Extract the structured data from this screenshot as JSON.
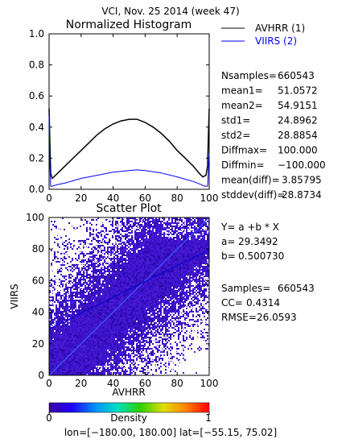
{
  "title": "VCI,  Nov. 25 2014 (week 47)",
  "chart_data": [
    {
      "type": "line",
      "title": "Normalized Histogram",
      "xlim": [
        0,
        100
      ],
      "ylim": [
        0,
        1.0
      ],
      "xticks": [
        "0",
        "20",
        "40",
        "60",
        "80",
        "100"
      ],
      "yticks": [
        "0.0",
        "0.2",
        "0.4",
        "0.6",
        "0.8",
        "1.0"
      ],
      "legend_position": "top-right",
      "series": [
        {
          "name": "AVHRR (1)",
          "color": "#000000",
          "x": [
            0,
            0.5,
            1,
            2,
            4,
            6,
            10,
            15,
            20,
            25,
            30,
            35,
            40,
            45,
            50,
            55,
            60,
            65,
            70,
            75,
            80,
            85,
            90,
            94,
            96,
            98,
            99,
            99.5,
            100
          ],
          "y": [
            0.52,
            0.3,
            0.1,
            0.07,
            0.09,
            0.11,
            0.15,
            0.2,
            0.25,
            0.3,
            0.35,
            0.39,
            0.42,
            0.44,
            0.45,
            0.45,
            0.43,
            0.4,
            0.36,
            0.31,
            0.25,
            0.2,
            0.15,
            0.1,
            0.08,
            0.09,
            0.15,
            0.35,
            0.52
          ]
        },
        {
          "name": "VIIRS (2)",
          "color": "#0000ff",
          "x": [
            0,
            0.5,
            1,
            2,
            5,
            10,
            15,
            20,
            30,
            40,
            50,
            55,
            60,
            70,
            80,
            85,
            90,
            95,
            97,
            99,
            100
          ],
          "y": [
            0.47,
            0.15,
            0.02,
            0.02,
            0.03,
            0.04,
            0.055,
            0.07,
            0.09,
            0.11,
            0.12,
            0.125,
            0.12,
            0.105,
            0.08,
            0.065,
            0.05,
            0.03,
            0.02,
            0.02,
            0.23
          ]
        }
      ]
    },
    {
      "type": "scatter",
      "title": "Scatter Plot",
      "xlabel": "AVHRR",
      "ylabel": "VIIRS",
      "xlim": [
        0,
        100
      ],
      "ylim": [
        0,
        100
      ],
      "xticks": [
        "0",
        "20",
        "40",
        "60",
        "80",
        "100"
      ],
      "yticks": [
        "0",
        "20",
        "40",
        "60",
        "80",
        "100"
      ],
      "density_colorbar": {
        "label": "Density",
        "min_label": "0",
        "max_label": "1",
        "colors": [
          "#3a00a0",
          "#2000ff",
          "#0090ff",
          "#00e0c0",
          "#30d000",
          "#e0e000",
          "#ff8000",
          "#ff0000"
        ]
      },
      "fit_line": {
        "a": 29.3492,
        "b": 0.50073
      },
      "identity_line": true
    }
  ],
  "stats": [
    {
      "label": "Nsamples=",
      "value": "660543"
    },
    {
      "label": "mean1=",
      "value": "51.0572"
    },
    {
      "label": "mean2=",
      "value": "54.9151"
    },
    {
      "label": "std1=",
      "value": "24.8962"
    },
    {
      "label": "std2=",
      "value": "28.8854"
    },
    {
      "label": "Diffmax=",
      "value": "100.000"
    },
    {
      "label": "Diffmin=",
      "value": "−100.000"
    },
    {
      "label": "mean(diff)=",
      "value": "3.85795"
    },
    {
      "label": "stddev(diff)=",
      "value": "28.8734"
    }
  ],
  "regression": {
    "equation": "Y= a +b * X",
    "a_label": "a=",
    "a_value": "29.3492",
    "b_label": "b=",
    "b_value": "0.500730",
    "samples_label": "Samples=",
    "samples_value": "660543",
    "cc_label": "CC=",
    "cc_value": "0.4314",
    "rmse_label": "RMSE=",
    "rmse_value": "26.0593"
  },
  "footer": "lon=[−180.00, 180.00] lat=[−55.15, 75.02]"
}
